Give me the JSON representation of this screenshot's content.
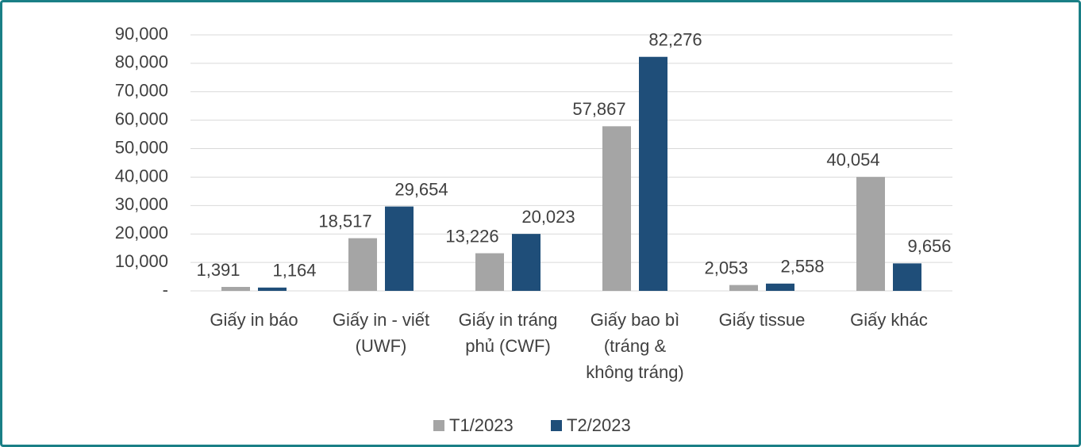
{
  "chart_data": {
    "type": "bar",
    "categories": [
      "Giấy in báo",
      "Giấy in - viết\n(UWF)",
      "Giấy in tráng\nphủ (CWF)",
      "Giấy bao bì\n(tráng &\nkhông tráng)",
      "Giấy tissue",
      "Giấy khác"
    ],
    "series": [
      {
        "name": "T1/2023",
        "color": "#a5a5a5",
        "values": [
          1391,
          18517,
          13226,
          57867,
          2053,
          40054
        ],
        "value_labels": [
          "1,391",
          "18,517",
          "13,226",
          "57,867",
          "2,053",
          "40,054"
        ]
      },
      {
        "name": "T2/2023",
        "color": "#1f4e79",
        "values": [
          1164,
          29654,
          20023,
          82276,
          2558,
          9656
        ],
        "value_labels": [
          "1,164",
          "29,654",
          "20,023",
          "82,276",
          "2,558",
          "9,656"
        ]
      }
    ],
    "ylim": [
      0,
      90000
    ],
    "yticks": [
      {
        "value": 0,
        "label": "-"
      },
      {
        "value": 10000,
        "label": "10,000"
      },
      {
        "value": 20000,
        "label": "20,000"
      },
      {
        "value": 30000,
        "label": "30,000"
      },
      {
        "value": 40000,
        "label": "40,000"
      },
      {
        "value": 50000,
        "label": "50,000"
      },
      {
        "value": 60000,
        "label": "60,000"
      },
      {
        "value": 70000,
        "label": "70,000"
      },
      {
        "value": 80000,
        "label": "80,000"
      },
      {
        "value": 90000,
        "label": "90,000"
      }
    ],
    "grid": true,
    "legend": "bottom"
  }
}
